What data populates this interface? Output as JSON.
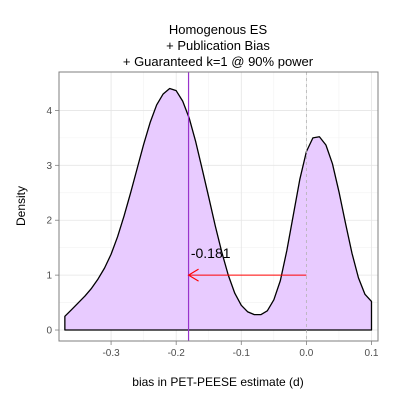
{
  "chart_data": {
    "type": "area",
    "title": [
      "Homogenous ES",
      "+ Publication Bias",
      "+ Guaranteed k=1 @ 90% power"
    ],
    "xlabel": "bias in PET-PEESE estimate (d)",
    "ylabel": "Density",
    "xlim": [
      -0.38,
      0.11
    ],
    "ylim": [
      -0.2,
      4.7
    ],
    "x_ticks": [
      -0.3,
      -0.2,
      -0.1,
      0.0,
      0.1
    ],
    "x_tick_labels": [
      "-0.3",
      "-0.2",
      "-0.1",
      "0.0",
      "0.1"
    ],
    "y_ticks": [
      0,
      1,
      2,
      3,
      4
    ],
    "y_tick_labels": [
      "0",
      "1",
      "2",
      "3",
      "4"
    ],
    "grid": true,
    "fill_color": "#e8cbff",
    "line_color": "#000000",
    "series": [
      {
        "x": [
          -0.371,
          -0.36,
          -0.35,
          -0.34,
          -0.33,
          -0.32,
          -0.31,
          -0.3,
          -0.29,
          -0.28,
          -0.27,
          -0.26,
          -0.25,
          -0.24,
          -0.23,
          -0.22,
          -0.21,
          -0.2,
          -0.19,
          -0.18,
          -0.17,
          -0.16,
          -0.15,
          -0.14,
          -0.13,
          -0.12,
          -0.11,
          -0.1,
          -0.09,
          -0.08,
          -0.07,
          -0.06,
          -0.05,
          -0.04,
          -0.03,
          -0.02,
          -0.01,
          0.0,
          0.01,
          0.02,
          0.03,
          0.04,
          0.05,
          0.06,
          0.07,
          0.08,
          0.09,
          0.1
        ],
        "y": [
          0.25,
          0.38,
          0.5,
          0.62,
          0.76,
          0.93,
          1.13,
          1.38,
          1.7,
          2.08,
          2.5,
          2.94,
          3.38,
          3.78,
          4.1,
          4.3,
          4.4,
          4.36,
          4.17,
          3.86,
          3.43,
          2.93,
          2.42,
          1.9,
          1.42,
          1.0,
          0.67,
          0.45,
          0.33,
          0.28,
          0.28,
          0.35,
          0.55,
          0.9,
          1.45,
          2.1,
          2.75,
          3.25,
          3.5,
          3.52,
          3.37,
          3.03,
          2.52,
          1.95,
          1.4,
          0.95,
          0.65,
          0.52
        ]
      }
    ],
    "vlines": [
      {
        "x": -0.181,
        "color": "#9933cc",
        "style": "solid"
      },
      {
        "x": 0.0,
        "color": "#b3b3b3",
        "style": "dashed"
      }
    ],
    "annotations": [
      {
        "text": "-0.181",
        "x": -0.147,
        "y": 1.4
      }
    ],
    "arrow": {
      "from": [
        0.0,
        1.0
      ],
      "to": [
        -0.181,
        1.0
      ],
      "color": "#ff0000"
    }
  }
}
